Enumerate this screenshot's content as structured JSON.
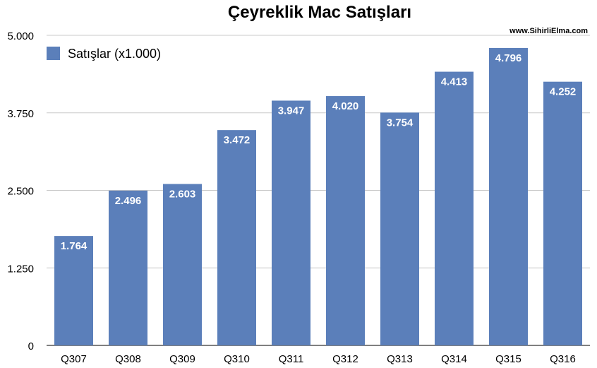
{
  "chart_data": {
    "type": "bar",
    "title": "Çeyreklik Mac Satışları",
    "source": "www.SihirliElma.com",
    "categories": [
      "Q307",
      "Q308",
      "Q309",
      "Q310",
      "Q311",
      "Q312",
      "Q313",
      "Q314",
      "Q315",
      "Q316"
    ],
    "series": [
      {
        "name": "Satışlar (x1.000)",
        "color": "#5b7fba",
        "values": [
          1764,
          2496,
          2603,
          3472,
          3947,
          4020,
          3754,
          4413,
          4796,
          4252
        ],
        "labels": [
          "1.764",
          "2.496",
          "2.603",
          "3.472",
          "3.947",
          "4.020",
          "3.754",
          "4.413",
          "4.796",
          "4.252"
        ]
      }
    ],
    "ylim": [
      0,
      5000
    ],
    "yticks": [
      0,
      1250,
      2500,
      3750,
      5000
    ],
    "ytick_labels": [
      "0",
      "1.250",
      "2.500",
      "3.750",
      "5.000"
    ],
    "grid": true,
    "legend_position": "top-left",
    "xlabel": "",
    "ylabel": ""
  }
}
